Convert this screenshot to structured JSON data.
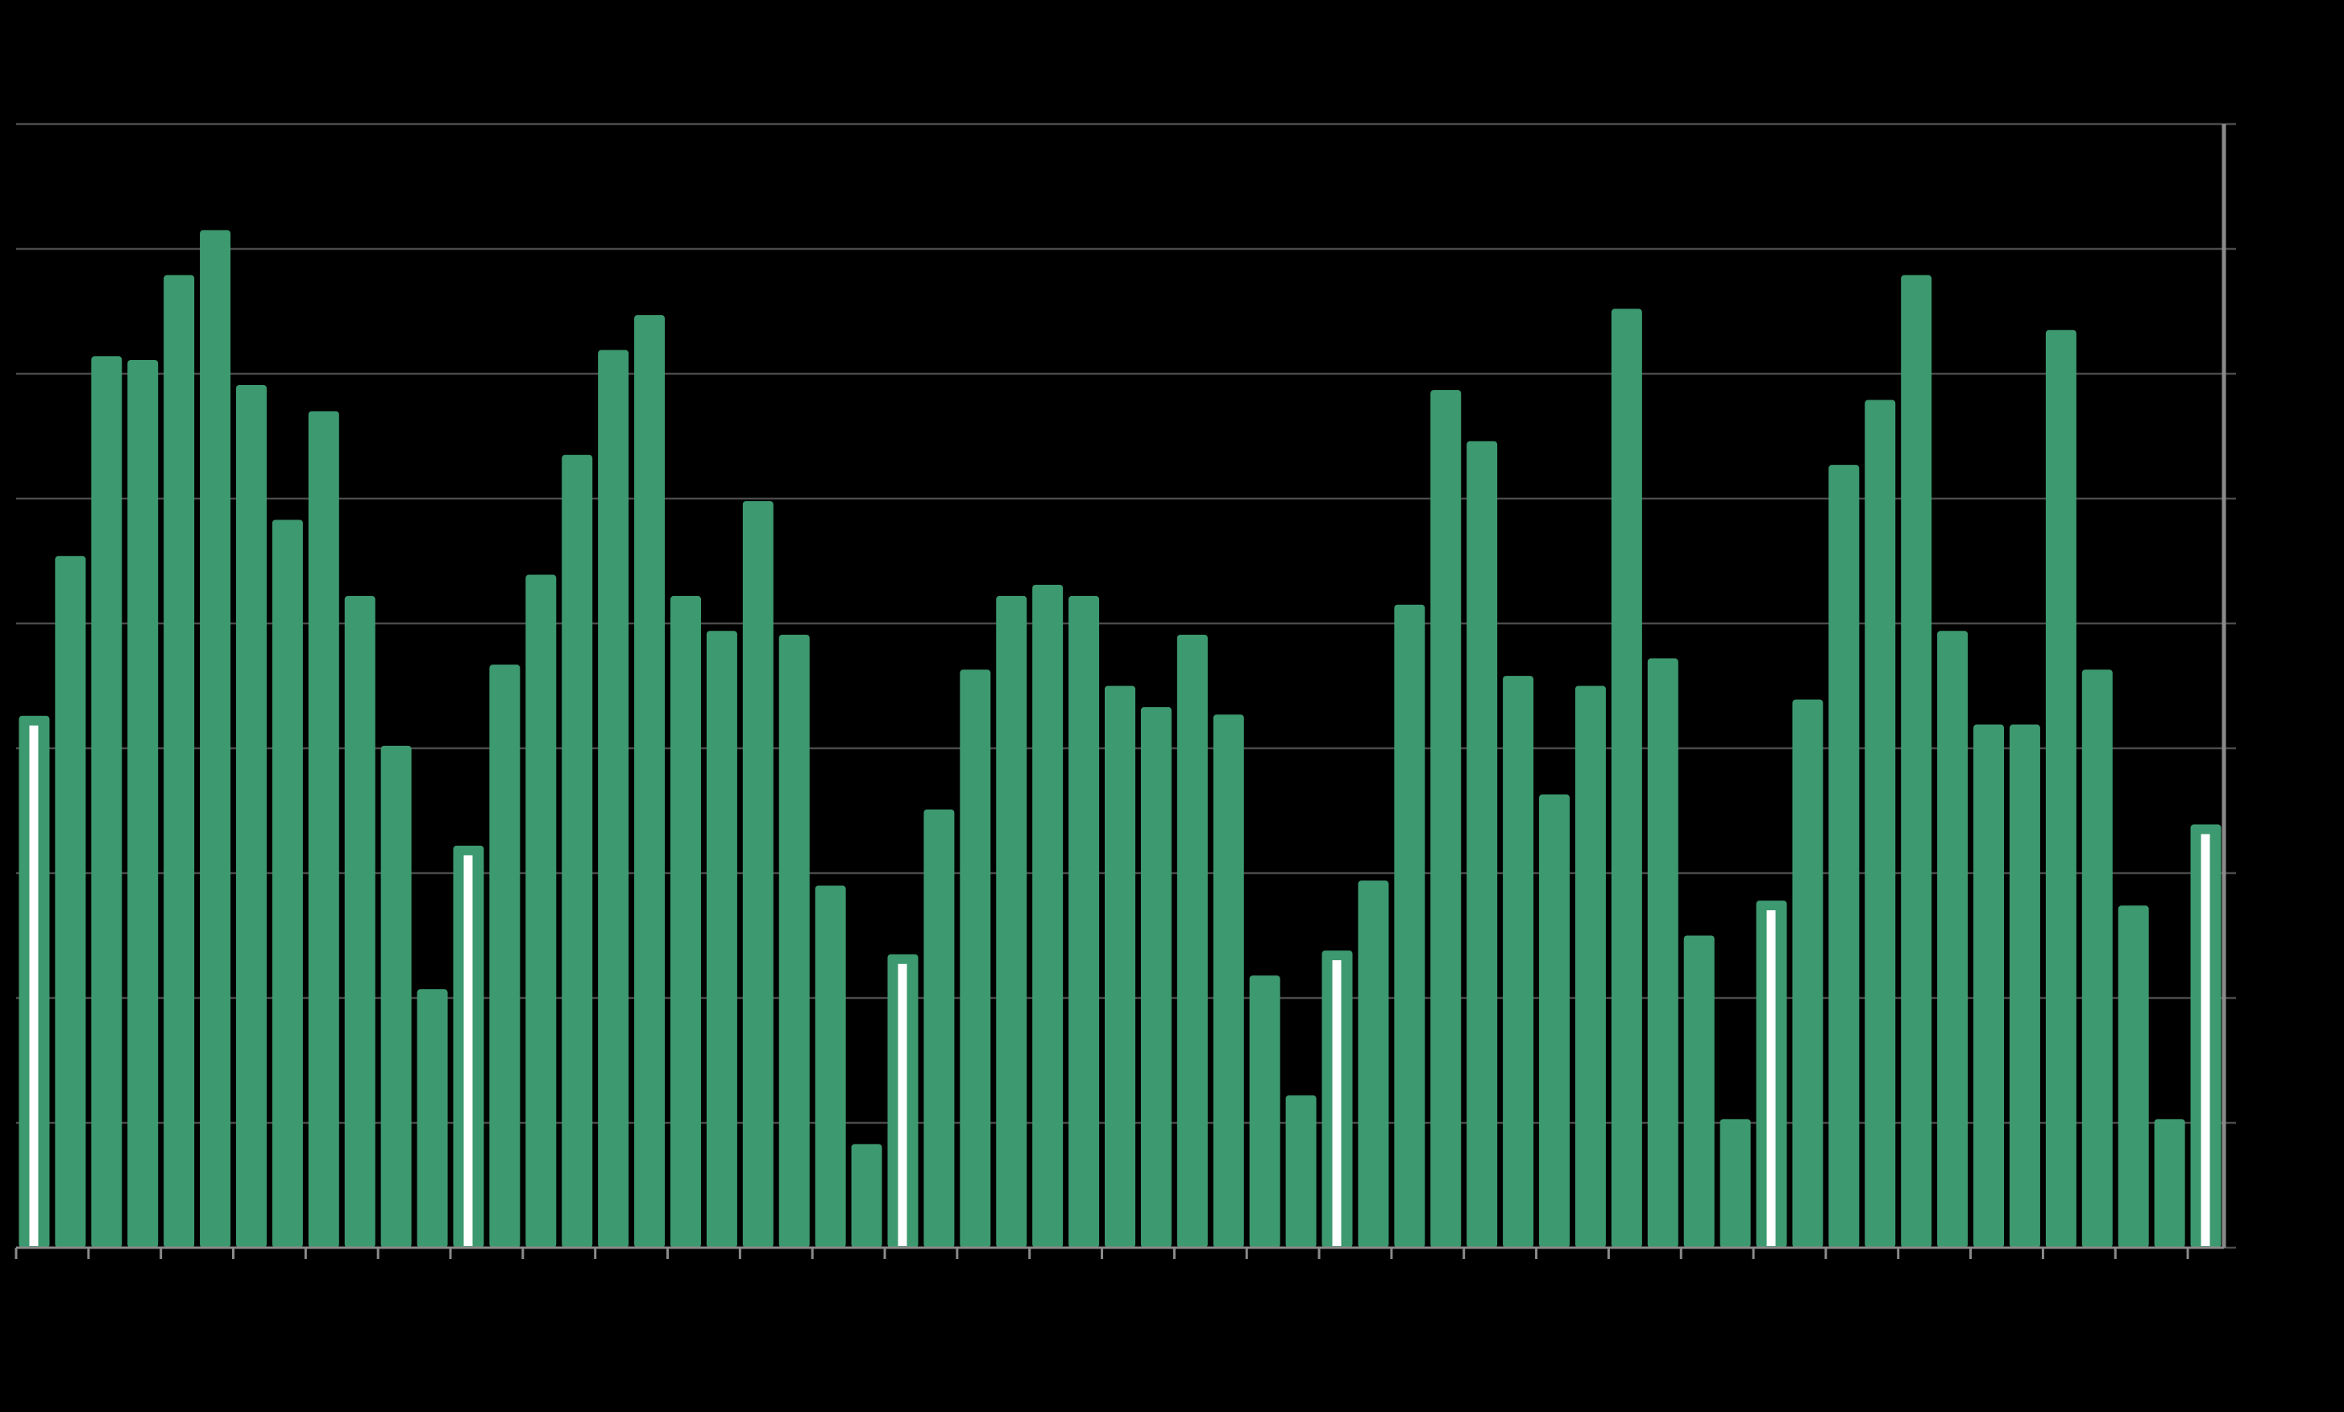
{
  "chart_data": {
    "type": "bar",
    "title": "",
    "xlabel": "",
    "ylabel": "",
    "ylim": [
      0,
      9
    ],
    "grid": true,
    "legend": "none",
    "values": [
      4.26,
      5.54,
      7.14,
      7.11,
      7.79,
      8.15,
      6.91,
      5.83,
      6.7,
      5.22,
      4.02,
      2.07,
      3.22,
      4.67,
      5.39,
      6.35,
      7.19,
      7.47,
      5.22,
      4.94,
      5.98,
      4.91,
      2.9,
      0.83,
      2.35,
      3.51,
      4.63,
      5.22,
      5.31,
      5.22,
      4.5,
      4.33,
      4.91,
      4.27,
      2.18,
      1.22,
      2.38,
      2.94,
      5.15,
      6.87,
      6.46,
      4.58,
      3.63,
      4.5,
      7.52,
      4.72,
      2.5,
      1.03,
      2.78,
      4.39,
      6.27,
      6.79,
      7.79,
      4.94,
      4.19,
      4.19,
      7.35,
      4.63,
      2.74,
      1.03,
      3.39
    ],
    "highlighted_indices": [
      0,
      12,
      24,
      36,
      48,
      60
    ],
    "colors": {
      "bar": "#3d9970",
      "highlight": "#ffffff",
      "grid": "#4a4a4a",
      "axis": "#8a8a8a",
      "background": "#000000"
    }
  }
}
